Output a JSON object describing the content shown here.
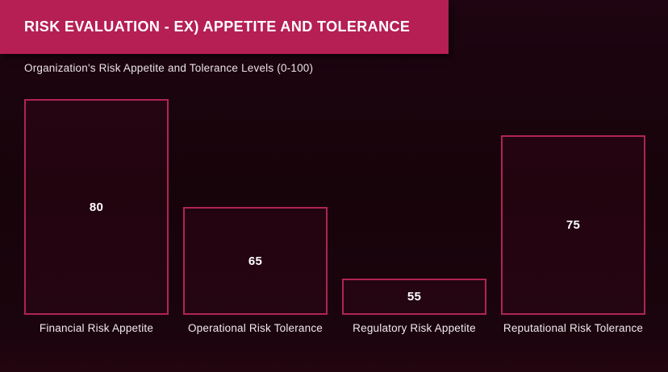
{
  "header": {
    "title": "RISK EVALUATION - EX) APPETITE AND TOLERANCE"
  },
  "colors": {
    "background": "#1a040d",
    "banner": "#b51f53",
    "bar_border": "#b02355",
    "bar_fill": "rgba(181,31,83,0.07)",
    "value_text": "#ffffff",
    "label_text": "#f1eaee",
    "subtitle_text": "#e9e2e6"
  },
  "chart_data": {
    "type": "bar",
    "title": "Organization's Risk Appetite and Tolerance Levels (0-100)",
    "categories": [
      "Financial Risk Appetite",
      "Operational Risk Tolerance",
      "Regulatory Risk Appetite",
      "Reputational Risk Tolerance"
    ],
    "values": [
      80,
      65,
      55,
      75
    ],
    "xlabel": "",
    "ylabel": "",
    "ylim": [
      50,
      80
    ],
    "stated_scale": [
      0,
      100
    ],
    "grid": false,
    "legend": false,
    "axes_hidden": true,
    "bar_style": "outlined",
    "value_label_position": "centered-inside-bar"
  }
}
